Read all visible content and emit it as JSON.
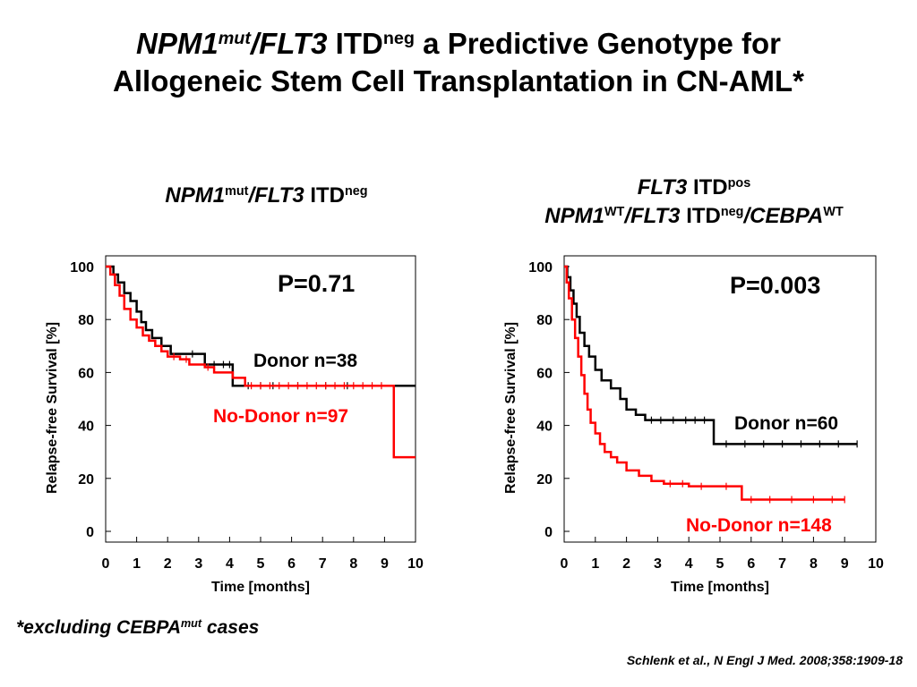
{
  "title": {
    "p1": "NPM1",
    "p1_sup": "mut",
    "p2": "/",
    "p3": "FLT3",
    "p4": " ITD",
    "p4_sup": "neg",
    "p5": " a Predictive Genotype for",
    "line2": "Allogeneic Stem Cell Transplantation in CN-AML*"
  },
  "left_panel_title": {
    "gene1": "NPM1",
    "gene1_sup": "mut",
    "slash": "/",
    "gene2": "FLT3",
    "itd": " ITD",
    "itd_sup": "neg"
  },
  "right_panel_title": {
    "line1_gene": "FLT3",
    "line1_itd": " ITD",
    "line1_sup": "pos",
    "line2_gene1": "NPM1",
    "line2_gene1_sup": "WT",
    "line2_slash": "/",
    "line2_gene2": "FLT3",
    "line2_itd": " ITD",
    "line2_itd_sup": "neg",
    "line2_slash2": "/",
    "line2_gene3": "CEBPA",
    "line2_gene3_sup": "WT"
  },
  "chart_data": [
    {
      "type": "line",
      "subtype": "kaplan-meier",
      "xlabel": "Time [months]",
      "ylabel": "Relapse-free Survival [%]",
      "xlim": [
        0,
        10
      ],
      "ylim": [
        0,
        100
      ],
      "xticks": [
        "0",
        "1",
        "2",
        "3",
        "4",
        "5",
        "6",
        "7",
        "8",
        "9",
        "10"
      ],
      "yticks": [
        "0",
        "20",
        "40",
        "60",
        "80",
        "100"
      ],
      "annotation": "P=0.71",
      "series": [
        {
          "name": "Donor n=38",
          "color": "#000000",
          "steps": [
            [
              0,
              100
            ],
            [
              0.25,
              97
            ],
            [
              0.4,
              94
            ],
            [
              0.6,
              90
            ],
            [
              0.8,
              87
            ],
            [
              1.0,
              83
            ],
            [
              1.15,
              79
            ],
            [
              1.3,
              76
            ],
            [
              1.5,
              73
            ],
            [
              1.8,
              70
            ],
            [
              2.1,
              67
            ],
            [
              3.0,
              67
            ],
            [
              3.2,
              63
            ],
            [
              4.1,
              63
            ],
            [
              4.1,
              55
            ],
            [
              10,
              55
            ]
          ],
          "censor": [
            2.8,
            3.5,
            3.8,
            4.0,
            4.6,
            5.0,
            5.4,
            6.2,
            7.1,
            7.8
          ]
        },
        {
          "name": "No-Donor n=97",
          "color": "#ff0000",
          "steps": [
            [
              0,
              100
            ],
            [
              0.15,
              97
            ],
            [
              0.3,
              93
            ],
            [
              0.45,
              89
            ],
            [
              0.6,
              84
            ],
            [
              0.8,
              80
            ],
            [
              1.0,
              77
            ],
            [
              1.2,
              74
            ],
            [
              1.4,
              72
            ],
            [
              1.6,
              70
            ],
            [
              1.8,
              68
            ],
            [
              2.0,
              66
            ],
            [
              2.4,
              65
            ],
            [
              2.7,
              63
            ],
            [
              3.2,
              62
            ],
            [
              3.5,
              60
            ],
            [
              4.1,
              58
            ],
            [
              4.5,
              55
            ],
            [
              9.3,
              55
            ],
            [
              9.3,
              28
            ],
            [
              10,
              28
            ]
          ],
          "censor": [
            2.2,
            2.6,
            3.3,
            4.7,
            5.0,
            5.3,
            5.6,
            5.9,
            6.2,
            6.5,
            6.8,
            7.1,
            7.4,
            7.7,
            8.0,
            8.3,
            8.6,
            8.9
          ]
        }
      ]
    },
    {
      "type": "line",
      "subtype": "kaplan-meier",
      "xlabel": "Time [months]",
      "ylabel": "Relapse-free Survival [%]",
      "xlim": [
        0,
        10
      ],
      "ylim": [
        0,
        100
      ],
      "xticks": [
        "0",
        "1",
        "2",
        "3",
        "4",
        "5",
        "6",
        "7",
        "8",
        "9",
        "10"
      ],
      "yticks": [
        "0",
        "20",
        "40",
        "60",
        "80",
        "100"
      ],
      "annotation": "P=0.003",
      "series": [
        {
          "name": "Donor n=60",
          "color": "#000000",
          "steps": [
            [
              0,
              100
            ],
            [
              0.1,
              96
            ],
            [
              0.2,
              91
            ],
            [
              0.3,
              86
            ],
            [
              0.4,
              81
            ],
            [
              0.5,
              75
            ],
            [
              0.65,
              70
            ],
            [
              0.8,
              66
            ],
            [
              1.0,
              61
            ],
            [
              1.2,
              57
            ],
            [
              1.5,
              54
            ],
            [
              1.8,
              50
            ],
            [
              2.0,
              46
            ],
            [
              2.3,
              44
            ],
            [
              2.6,
              42
            ],
            [
              4.7,
              42
            ],
            [
              4.8,
              33
            ],
            [
              9.4,
              33
            ]
          ],
          "censor": [
            2.8,
            3.1,
            3.5,
            3.9,
            4.2,
            4.5,
            5.2,
            5.8,
            6.4,
            7.0,
            7.6,
            8.2,
            8.8,
            9.4
          ]
        },
        {
          "name": "No-Donor n=148",
          "color": "#ff0000",
          "steps": [
            [
              0,
              100
            ],
            [
              0.08,
              94
            ],
            [
              0.15,
              88
            ],
            [
              0.25,
              80
            ],
            [
              0.35,
              73
            ],
            [
              0.45,
              66
            ],
            [
              0.55,
              59
            ],
            [
              0.65,
              52
            ],
            [
              0.75,
              46
            ],
            [
              0.85,
              41
            ],
            [
              1.0,
              37
            ],
            [
              1.15,
              33
            ],
            [
              1.3,
              30
            ],
            [
              1.5,
              28
            ],
            [
              1.7,
              26
            ],
            [
              2.0,
              23
            ],
            [
              2.4,
              21
            ],
            [
              2.8,
              19
            ],
            [
              3.2,
              18
            ],
            [
              4.0,
              17
            ],
            [
              4.9,
              17
            ],
            [
              5.7,
              16
            ],
            [
              5.7,
              12
            ],
            [
              9.0,
              12
            ]
          ],
          "censor": [
            3.4,
            3.8,
            4.4,
            5.2,
            6.0,
            6.6,
            7.3,
            8.0,
            8.6,
            9.0
          ]
        }
      ]
    }
  ],
  "footnote": {
    "pre": "*excluding ",
    "gene": "CEBPA",
    "sup": "mut",
    "post": " cases"
  },
  "citation": "Schlenk et al., N Engl J Med. 2008;358:1909-18"
}
